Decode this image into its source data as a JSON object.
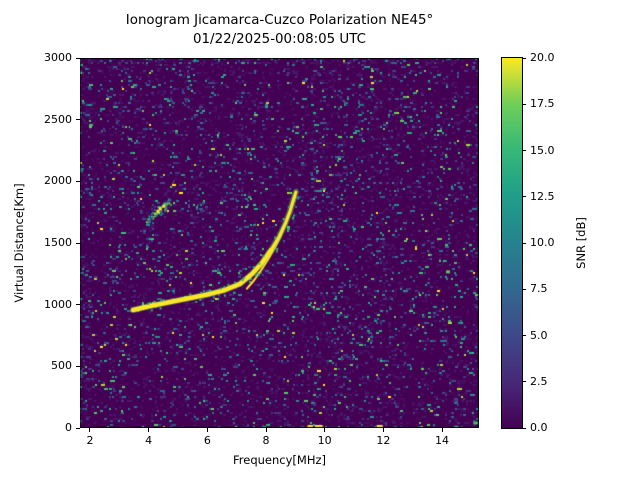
{
  "figure": {
    "title_line1": "Ionogram Jicamarca-Cuzco Polarization NE45°",
    "title_line2": "01/22/2025-00:08:05 UTC"
  },
  "chart_data": {
    "type": "heatmap",
    "title": "Ionogram Jicamarca-Cuzco Polarization NE45°",
    "subtitle": "01/22/2025-00:08:05 UTC",
    "xlabel": "Frequency[MHz]",
    "ylabel": "Virtual Distance[Km]",
    "xlim": [
      1.66,
      15.26
    ],
    "ylim": [
      0,
      3000
    ],
    "xticks": [
      2,
      4,
      6,
      8,
      10,
      12,
      14
    ],
    "yticks": [
      0,
      500,
      1000,
      1500,
      2000,
      2500,
      3000
    ],
    "grid": false,
    "legend": "none",
    "colorbar": {
      "label": "SNR [dB]",
      "min": 0,
      "max": 20,
      "tick_values": [
        0,
        2.5,
        5,
        7.5,
        10,
        12.5,
        15,
        17.5,
        20
      ],
      "tick_labels": [
        "0.0",
        "2.5",
        "5.0",
        "7.5",
        "10.0",
        "12.5",
        "15.0",
        "17.5",
        "20.0"
      ],
      "colormap": "viridis",
      "stops": [
        "#440154",
        "#482878",
        "#3e4989",
        "#31688e",
        "#26828e",
        "#1f9e89",
        "#35b779",
        "#6ece58",
        "#fde725"
      ]
    },
    "background_color": "#440154",
    "trace_color": "#fde725",
    "noise": {
      "seed": 20250122,
      "palette": {
        "faint": [
          "#470d60",
          "#48176a"
        ],
        "low": [
          "#463480",
          "#3f4788"
        ],
        "mid": [
          "#33628d",
          "#2c728e"
        ],
        "teal": [
          "#21918c",
          "#25ab82"
        ],
        "green": [
          "#40bd72",
          "#5ec962"
        ],
        "lime": "#aadc32",
        "bright": "#fde725"
      }
    },
    "series": [
      {
        "name": "F-layer echo trace (O-mode)",
        "units": [
          "MHz",
          "km"
        ],
        "points": [
          [
            3.47,
            957
          ],
          [
            4.05,
            989
          ],
          [
            4.73,
            1022
          ],
          [
            5.41,
            1054
          ],
          [
            6.09,
            1087
          ],
          [
            6.6,
            1119
          ],
          [
            7.11,
            1168
          ],
          [
            7.52,
            1249
          ],
          [
            7.86,
            1338
          ],
          [
            8.17,
            1443
          ],
          [
            8.44,
            1549
          ],
          [
            8.65,
            1654
          ],
          [
            8.82,
            1760
          ],
          [
            8.92,
            1841
          ],
          [
            9.02,
            1914
          ]
        ]
      },
      {
        "name": "F-layer echo trace (X-mode)",
        "units": [
          "MHz",
          "km"
        ],
        "points": [
          [
            7.35,
            1130
          ],
          [
            7.6,
            1200
          ],
          [
            7.85,
            1285
          ],
          [
            8.08,
            1370
          ],
          [
            8.3,
            1460
          ],
          [
            8.5,
            1555
          ],
          [
            8.65,
            1640
          ],
          [
            8.78,
            1720
          ],
          [
            8.9,
            1805
          ],
          [
            9.0,
            1880
          ]
        ]
      }
    ],
    "diffuse_echo": {
      "f_range": [
        3.9,
        4.75
      ],
      "vd_range": [
        1690,
        1845
      ],
      "bright_spots": [
        [
          4.3,
          1760
        ],
        [
          4.38,
          1782
        ],
        [
          4.5,
          1802
        ]
      ]
    },
    "bottom_interference": {
      "yellow_segments": [
        [
          9.42,
          9.6
        ],
        [
          9.66,
          9.93
        ],
        [
          11.77,
          11.98
        ]
      ],
      "green_spots": [
        [
          14.45,
          10
        ],
        [
          15.1,
          45
        ]
      ]
    },
    "isolated_green_blob": [
      14.17,
      1270
    ]
  }
}
